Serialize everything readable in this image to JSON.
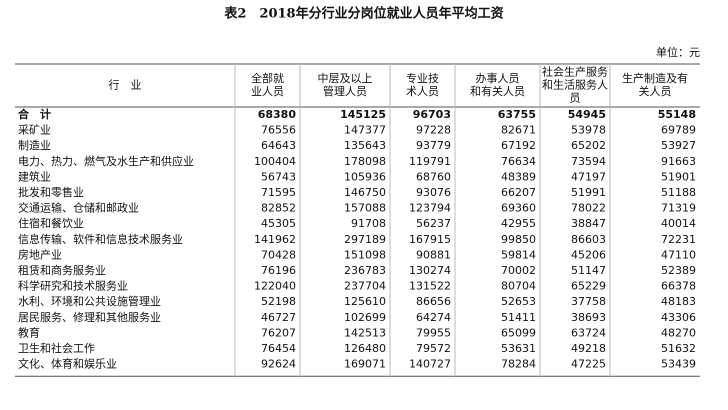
{
  "header": {
    "title": "表2　2018年分行业分岗位就业人员年平均工资",
    "unit": "单位：元"
  },
  "table": {
    "columns": [
      [
        "行　业"
      ],
      [
        "全部就",
        "业人员"
      ],
      [
        "中层及以上",
        "管理人员"
      ],
      [
        "专业技",
        "术人员"
      ],
      [
        "办事人员",
        "和有关人员"
      ],
      [
        "社会生产服务",
        "和生活服务人",
        "员"
      ],
      [
        "生产制造及有",
        "关人员"
      ]
    ],
    "rows": [
      [
        "合　计",
        68380,
        145125,
        96703,
        63755,
        54945,
        55148
      ],
      [
        "采矿业",
        76556,
        147377,
        97228,
        82671,
        53978,
        69789
      ],
      [
        "制造业",
        64643,
        135643,
        93779,
        67192,
        65202,
        53927
      ],
      [
        "电力、热力、燃气及水生产和供应业",
        100404,
        178098,
        119791,
        76634,
        73594,
        91663
      ],
      [
        "建筑业",
        56743,
        105936,
        68760,
        48389,
        47197,
        51901
      ],
      [
        "批发和零售业",
        71595,
        146750,
        93076,
        66207,
        51991,
        51188
      ],
      [
        "交通运输、仓储和邮政业",
        82852,
        157088,
        123794,
        69360,
        78022,
        71319
      ],
      [
        "住宿和餐饮业",
        45305,
        91708,
        56237,
        42955,
        38847,
        40014
      ],
      [
        "信息传输、软件和信息技术服务业",
        141962,
        297189,
        167915,
        99850,
        86603,
        72231
      ],
      [
        "房地产业",
        70428,
        151098,
        90881,
        59814,
        45206,
        47110
      ],
      [
        "租赁和商务服务业",
        76196,
        236783,
        130274,
        70002,
        51147,
        52389
      ],
      [
        "科学研究和技术服务业",
        122040,
        237704,
        131522,
        80704,
        65229,
        66378
      ],
      [
        "水利、环境和公共设施管理业",
        52198,
        125610,
        86656,
        52653,
        37758,
        48183
      ],
      [
        "居民服务、修理和其他服务业",
        46727,
        102699,
        64274,
        51411,
        38693,
        43306
      ],
      [
        "教育",
        76207,
        142513,
        79955,
        65099,
        63724,
        48270
      ],
      [
        "卫生和社会工作",
        76454,
        126480,
        79572,
        53631,
        49218,
        51632
      ],
      [
        "文化、体育和娱乐业",
        92624,
        169071,
        140727,
        78284,
        47225,
        53439
      ]
    ]
  }
}
